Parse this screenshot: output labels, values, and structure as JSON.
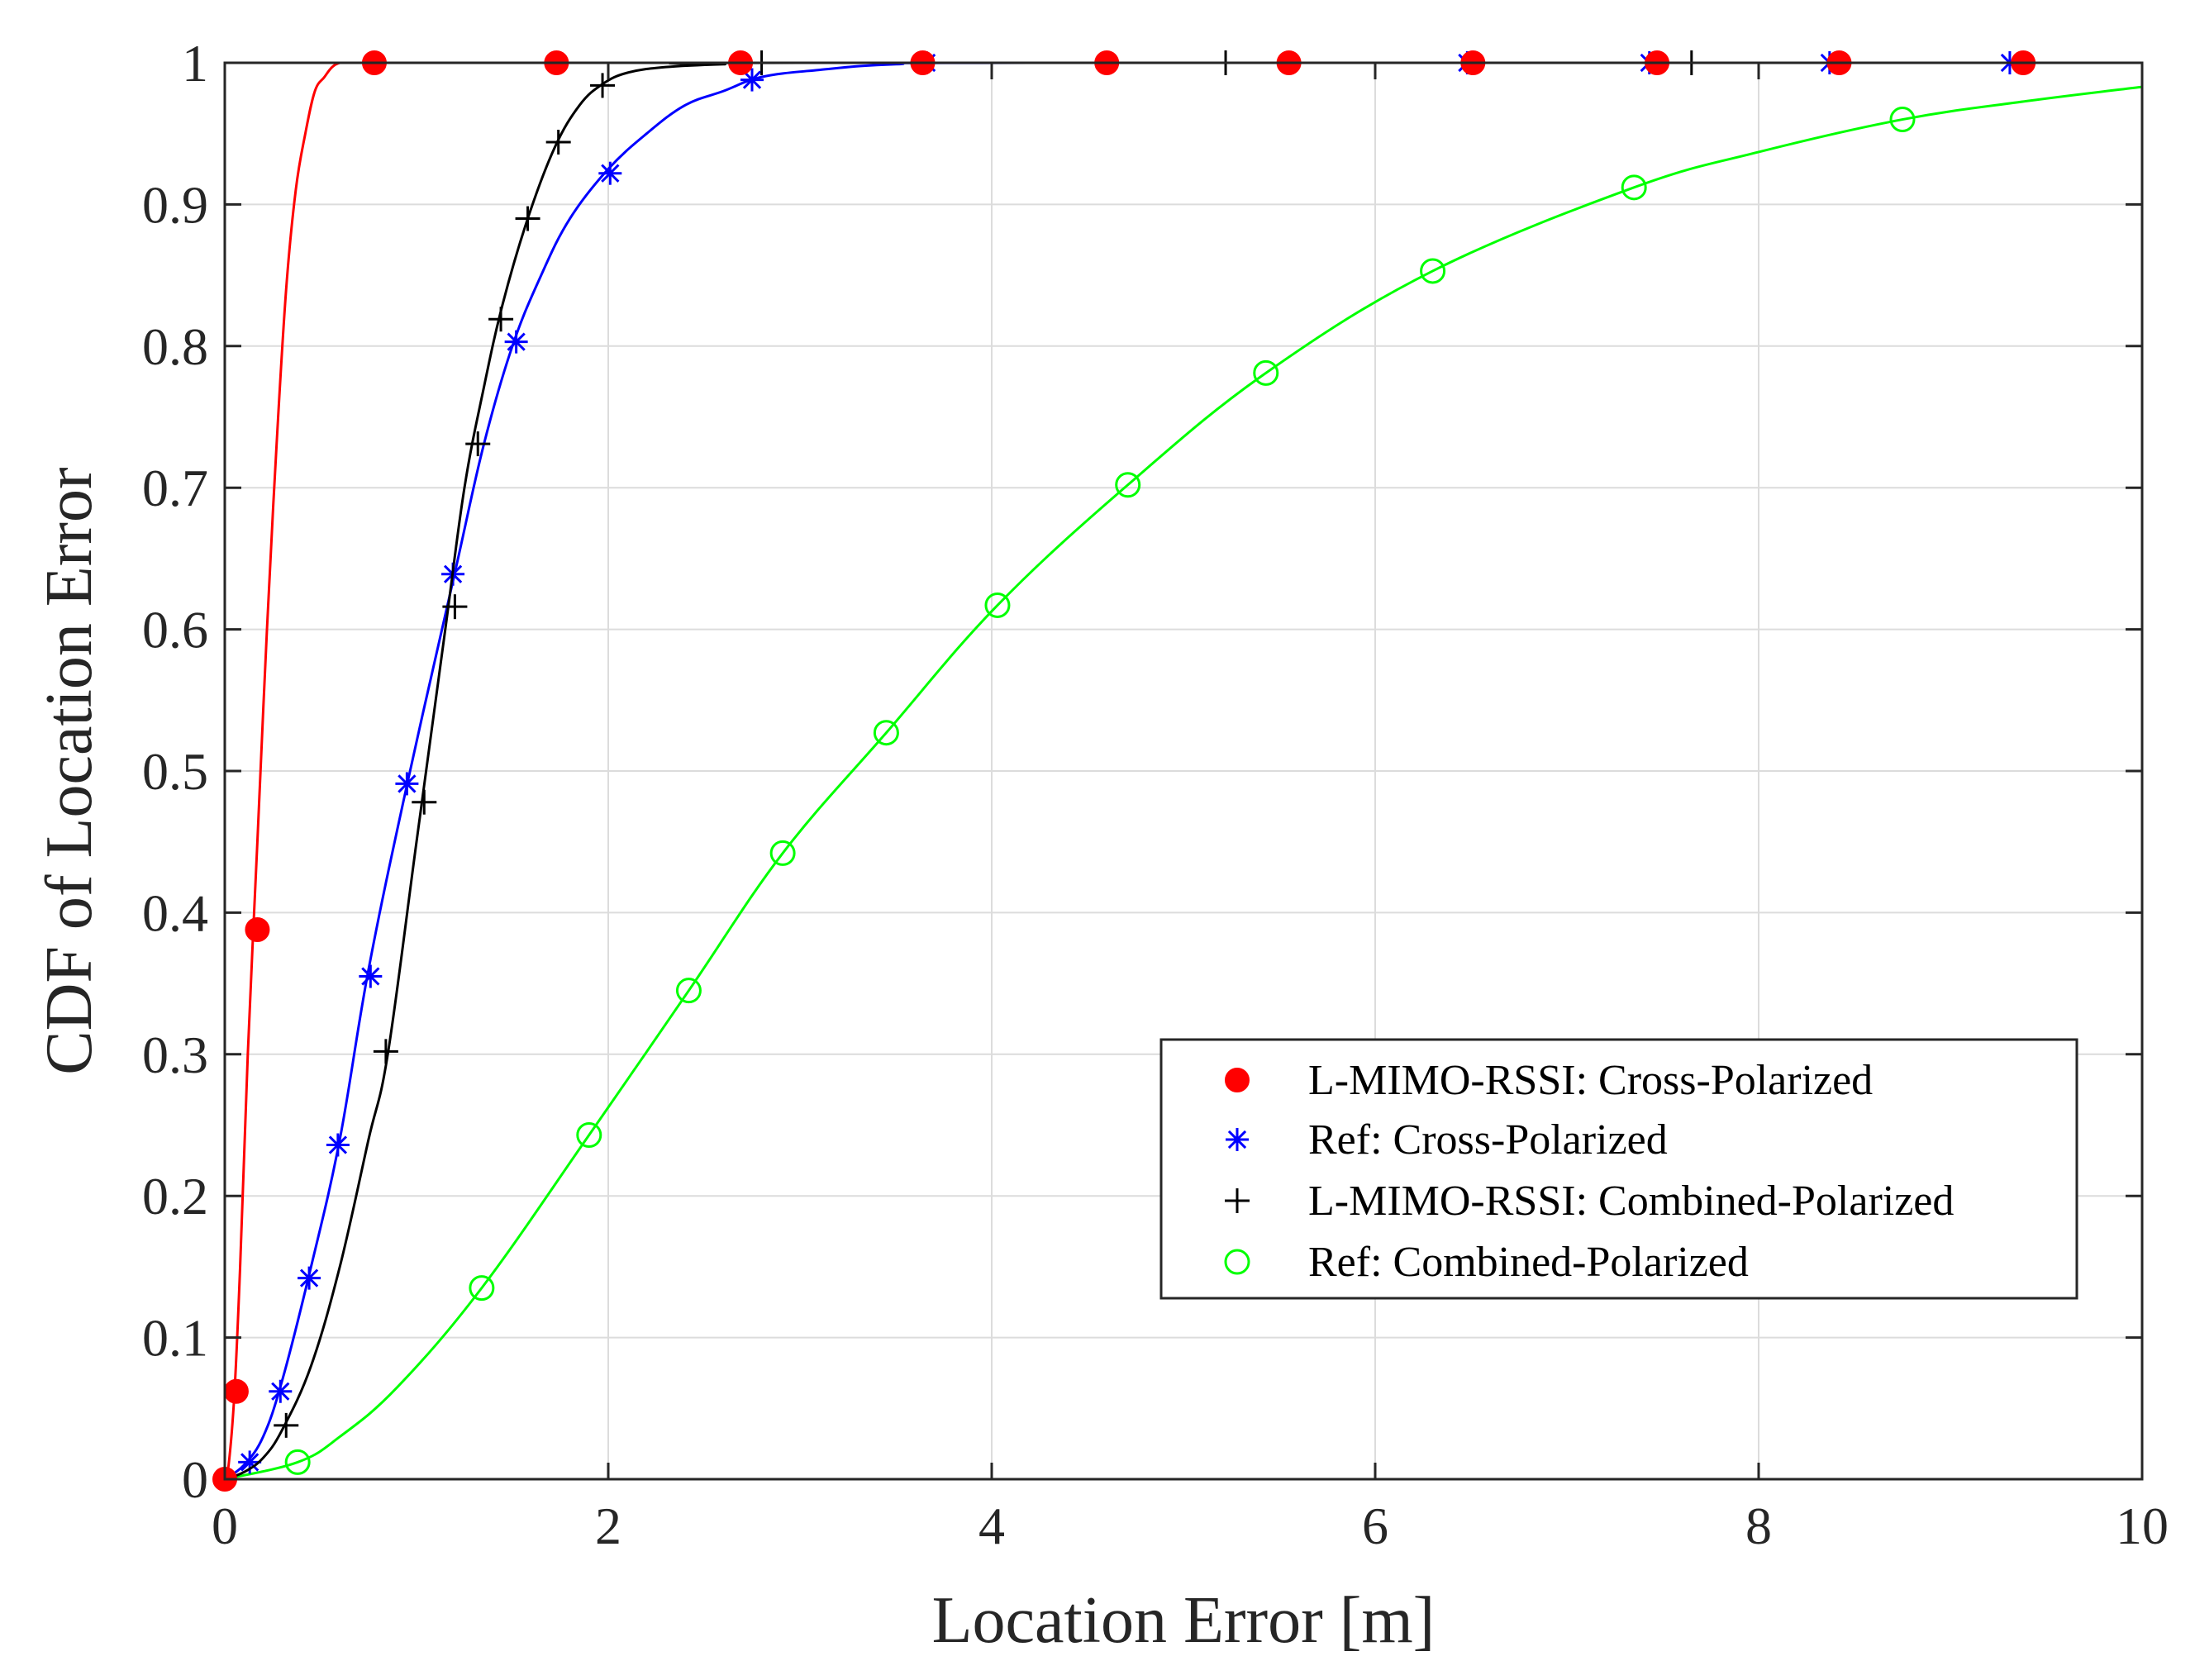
{
  "chart_data": {
    "type": "line",
    "title": "",
    "xlabel": "Location Error [m]",
    "ylabel": "CDF of Location Error",
    "xlim": [
      0,
      10
    ],
    "ylim": [
      0,
      1
    ],
    "xticks": [
      0,
      2,
      4,
      6,
      8,
      10
    ],
    "yticks": [
      0,
      0.1,
      0.2,
      0.3,
      0.4,
      0.5,
      0.6,
      0.7,
      0.8,
      0.9,
      1
    ],
    "xtick_labels": [
      "0",
      "2",
      "4",
      "6",
      "8",
      "10"
    ],
    "ytick_labels": [
      "0",
      "0.1",
      "0.2",
      "0.3",
      "0.4",
      "0.5",
      "0.6",
      "0.7",
      "0.8",
      "0.9",
      "1"
    ],
    "grid": true,
    "legend_position": "lower-right",
    "series": [
      {
        "name": "L-MIMO-RSSI: Cross-Polarized",
        "color": "#ff0000",
        "marker": "filled-circle",
        "line": {
          "x": [
            0,
            0.02,
            0.05,
            0.08,
            0.12,
            0.17,
            0.22,
            0.27,
            0.32,
            0.37,
            0.42,
            0.47,
            0.52,
            0.56,
            0.6,
            0.65,
            0.8,
            10
          ],
          "y": [
            0,
            0.01,
            0.06,
            0.15,
            0.3,
            0.45,
            0.6,
            0.73,
            0.84,
            0.91,
            0.95,
            0.98,
            0.99,
            0.997,
            1,
            1,
            1,
            1
          ]
        },
        "markers": {
          "x": [
            0,
            0.06,
            0.17,
            0.78,
            1.73,
            2.69,
            3.64,
            4.6,
            5.55,
            6.51,
            7.47,
            8.42,
            9.38
          ],
          "y": [
            0,
            0.062,
            0.388,
            1,
            1,
            1,
            1,
            1,
            1,
            1,
            1,
            1,
            1
          ]
        }
      },
      {
        "name": "Ref: Cross-Polarized",
        "color": "#0000ff",
        "marker": "asterisk",
        "line": {
          "x": [
            0,
            0.1,
            0.2,
            0.3,
            0.45,
            0.6,
            0.75,
            0.95,
            1.2,
            1.35,
            1.5,
            1.65,
            1.8,
            2.0,
            2.2,
            2.4,
            2.6,
            2.8,
            3.1,
            3.5,
            4.2,
            10
          ],
          "y": [
            0,
            0.01,
            0.03,
            0.07,
            0.15,
            0.24,
            0.36,
            0.49,
            0.64,
            0.73,
            0.8,
            0.85,
            0.89,
            0.925,
            0.95,
            0.97,
            0.98,
            0.99,
            0.995,
            0.999,
            1,
            1
          ]
        },
        "markers": {
          "x": [
            0,
            0.13,
            0.29,
            0.44,
            0.59,
            0.76,
            0.95,
            1.19,
            1.52,
            2.01,
            2.75,
            3.66,
            4.6,
            5.55,
            6.48,
            7.43,
            8.37,
            9.31
          ],
          "y": [
            0,
            0.012,
            0.062,
            0.142,
            0.236,
            0.355,
            0.491,
            0.639,
            0.803,
            0.922,
            0.988,
            1,
            1,
            1,
            1,
            1,
            1,
            1
          ]
        }
      },
      {
        "name": "L-MIMO-RSSI: Combined-Polarized",
        "color": "#000000",
        "marker": "plus",
        "line": {
          "x": [
            0,
            0.1,
            0.2,
            0.3,
            0.45,
            0.6,
            0.75,
            0.85,
            1.0,
            1.15,
            1.25,
            1.35,
            1.45,
            1.58,
            1.72,
            1.85,
            1.97,
            2.1,
            2.3,
            2.6,
            3.0,
            10
          ],
          "y": [
            0,
            0.005,
            0.015,
            0.035,
            0.08,
            0.15,
            0.24,
            0.3,
            0.45,
            0.6,
            0.7,
            0.77,
            0.83,
            0.89,
            0.94,
            0.97,
            0.985,
            0.993,
            0.997,
            0.999,
            1,
            1
          ]
        },
        "markers": {
          "x": [
            0.32,
            0.84,
            1.04,
            1.2,
            1.32,
            1.44,
            1.58,
            1.74,
            1.97,
            2.8,
            5.22,
            7.65
          ],
          "y": [
            0.038,
            0.302,
            0.478,
            0.616,
            0.731,
            0.819,
            0.89,
            0.944,
            0.984,
            1,
            1,
            1
          ]
        }
      },
      {
        "name": "Ref: Combined-Polarized",
        "color": "#00ff00",
        "marker": "open-circle",
        "line": {
          "x": [
            0,
            0.38,
            0.6,
            0.9,
            1.34,
            1.9,
            2.42,
            2.91,
            3.45,
            4.03,
            4.71,
            5.43,
            6.3,
            7.35,
            8.0,
            8.75,
            9.4,
            10
          ],
          "y": [
            0,
            0.012,
            0.03,
            0.065,
            0.135,
            0.243,
            0.345,
            0.442,
            0.527,
            0.617,
            0.702,
            0.781,
            0.853,
            0.912,
            0.937,
            0.96,
            0.973,
            0.983
          ]
        },
        "markers": {
          "x": [
            0.38,
            1.34,
            1.9,
            2.42,
            2.91,
            3.45,
            4.03,
            4.71,
            5.43,
            6.3,
            7.35,
            8.75
          ],
          "y": [
            0.012,
            0.135,
            0.243,
            0.345,
            0.442,
            0.527,
            0.617,
            0.702,
            0.781,
            0.853,
            0.912,
            0.96
          ]
        }
      }
    ]
  }
}
